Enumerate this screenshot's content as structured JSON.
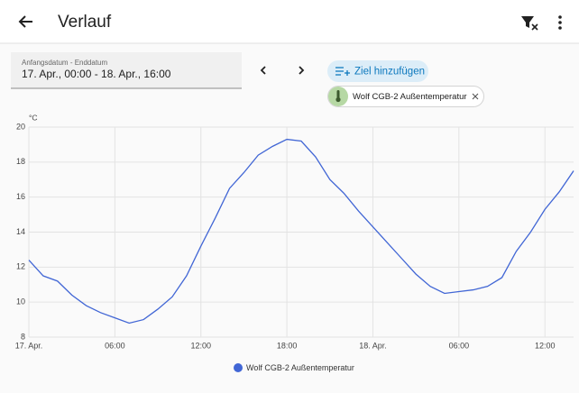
{
  "header": {
    "title": "Verlauf"
  },
  "date_picker": {
    "label": "Anfangsdatum - Enddatum",
    "value": "17. Apr., 00:00 - 18. Apr., 16:00"
  },
  "add_target": "Ziel hinzufügen",
  "targets": [
    "Wolf CGB-2 Außentemperatur"
  ],
  "chart_data": {
    "type": "line",
    "y_label": "°C",
    "x": [
      0,
      1,
      2,
      3,
      4,
      5,
      6,
      7,
      8,
      9,
      10,
      11,
      12,
      13,
      14,
      15,
      16,
      17,
      18,
      19,
      20,
      21,
      22,
      23,
      24,
      25,
      26,
      27,
      28,
      29,
      30,
      31,
      32,
      33,
      34,
      35,
      36,
      37,
      38
    ],
    "series": [
      {
        "name": "Wolf CGB-2 Außentemperatur",
        "color": "#4166d5",
        "values": [
          12.4,
          11.5,
          11.2,
          10.4,
          9.8,
          9.4,
          9.1,
          8.8,
          9.0,
          9.6,
          10.3,
          11.5,
          13.2,
          14.8,
          16.5,
          17.4,
          18.4,
          18.9,
          19.3,
          19.2,
          18.3,
          17.0,
          16.2,
          15.2,
          14.3,
          13.4,
          12.5,
          11.6,
          10.9,
          10.5,
          10.6,
          10.7,
          10.9,
          11.4,
          12.9,
          14.0,
          15.3,
          16.3,
          17.5
        ]
      }
    ],
    "xlim": [
      0,
      38
    ],
    "xticks": [
      {
        "value": 0,
        "label": "17. Apr."
      },
      {
        "value": 6,
        "label": "06:00"
      },
      {
        "value": 12,
        "label": "12:00"
      },
      {
        "value": 18,
        "label": "18:00"
      },
      {
        "value": 24,
        "label": "18. Apr."
      },
      {
        "value": 30,
        "label": "06:00"
      },
      {
        "value": 36,
        "label": "12:00"
      }
    ],
    "ylim": [
      8,
      20
    ],
    "yticks": [
      8,
      10,
      12,
      14,
      16,
      18,
      20
    ],
    "grid": true
  }
}
